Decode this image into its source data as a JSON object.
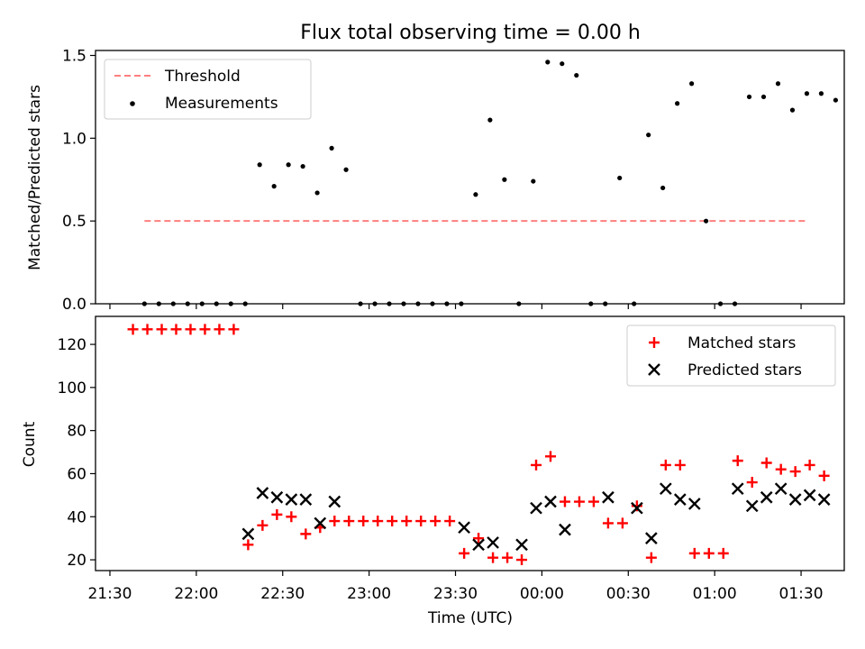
{
  "chart_data": [
    {
      "type": "scatter",
      "title": "Flux total observing time = 0.00 h",
      "xlabel": "",
      "ylabel": "Matched/Predicted stars",
      "ylim": [
        0,
        1.53
      ],
      "yticks": [
        0,
        0.5,
        1,
        1.5
      ],
      "ytick_labels": [
        "0.0",
        "0.5",
        "1.0",
        "1.5"
      ],
      "legend_position": "upper-left",
      "threshold": {
        "name": "Threshold",
        "value": 0.5,
        "x_start": "21:42",
        "x_end": "01:32",
        "color": "#ff7f7f"
      },
      "series": [
        {
          "name": "Measurements",
          "color": "#000000",
          "marker": "dot",
          "points": [
            [
              "21:42",
              0
            ],
            [
              "21:47",
              0
            ],
            [
              "21:52",
              0
            ],
            [
              "21:57",
              0
            ],
            [
              "22:02",
              0
            ],
            [
              "22:07",
              0
            ],
            [
              "22:12",
              0
            ],
            [
              "22:17",
              0
            ],
            [
              "22:22",
              0.84
            ],
            [
              "22:27",
              0.71
            ],
            [
              "22:32",
              0.84
            ],
            [
              "22:37",
              0.83
            ],
            [
              "22:42",
              0.67
            ],
            [
              "22:47",
              0.94
            ],
            [
              "22:52",
              0.81
            ],
            [
              "22:57",
              0
            ],
            [
              "23:02",
              0
            ],
            [
              "23:07",
              0
            ],
            [
              "23:12",
              0
            ],
            [
              "23:17",
              0
            ],
            [
              "23:22",
              0
            ],
            [
              "23:27",
              0
            ],
            [
              "23:32",
              0
            ],
            [
              "23:37",
              0.66
            ],
            [
              "23:42",
              1.11
            ],
            [
              "23:47",
              0.75
            ],
            [
              "23:52",
              0
            ],
            [
              "23:57",
              0.74
            ],
            [
              "00:02",
              1.46
            ],
            [
              "00:07",
              1.45
            ],
            [
              "00:12",
              1.38
            ],
            [
              "00:17",
              0
            ],
            [
              "00:22",
              0
            ],
            [
              "00:27",
              0.76
            ],
            [
              "00:32",
              0
            ],
            [
              "00:37",
              1.02
            ],
            [
              "00:42",
              0.7
            ],
            [
              "00:47",
              1.21
            ],
            [
              "00:52",
              1.33
            ],
            [
              "00:57",
              0.5
            ],
            [
              "01:02",
              0
            ],
            [
              "01:07",
              0
            ],
            [
              "01:12",
              1.25
            ],
            [
              "01:17",
              1.25
            ],
            [
              "01:22",
              1.33
            ],
            [
              "01:27",
              1.17
            ],
            [
              "01:32",
              1.27
            ],
            [
              "01:37",
              1.27
            ],
            [
              "01:42",
              1.23
            ]
          ]
        }
      ]
    },
    {
      "type": "scatter",
      "title": "",
      "xlabel": "Time (UTC)",
      "ylabel": "Count",
      "ylim": [
        15,
        133
      ],
      "yticks": [
        20,
        40,
        60,
        80,
        100,
        120
      ],
      "xlim": [
        "21:25",
        "01:45"
      ],
      "xticks": [
        "21:30",
        "22:00",
        "22:30",
        "23:00",
        "23:30",
        "00:00",
        "00:30",
        "01:00",
        "01:30"
      ],
      "legend_position": "upper-right",
      "series": [
        {
          "name": "Matched stars",
          "color": "#ff0000",
          "marker": "plus",
          "points": [
            [
              "21:38",
              127
            ],
            [
              "21:43",
              127
            ],
            [
              "21:48",
              127
            ],
            [
              "21:53",
              127
            ],
            [
              "21:58",
              127
            ],
            [
              "22:03",
              127
            ],
            [
              "22:08",
              127
            ],
            [
              "22:13",
              127
            ],
            [
              "22:18",
              27
            ],
            [
              "22:23",
              36
            ],
            [
              "22:28",
              41
            ],
            [
              "22:33",
              40
            ],
            [
              "22:38",
              32
            ],
            [
              "22:43",
              35
            ],
            [
              "22:48",
              38
            ],
            [
              "22:53",
              38
            ],
            [
              "22:58",
              38
            ],
            [
              "23:03",
              38
            ],
            [
              "23:08",
              38
            ],
            [
              "23:13",
              38
            ],
            [
              "23:18",
              38
            ],
            [
              "23:23",
              38
            ],
            [
              "23:28",
              38
            ],
            [
              "23:33",
              23
            ],
            [
              "23:38",
              30
            ],
            [
              "23:43",
              21
            ],
            [
              "23:48",
              21
            ],
            [
              "23:53",
              20
            ],
            [
              "23:58",
              64
            ],
            [
              "00:03",
              68
            ],
            [
              "00:08",
              47
            ],
            [
              "00:13",
              47
            ],
            [
              "00:18",
              47
            ],
            [
              "00:23",
              37
            ],
            [
              "00:28",
              37
            ],
            [
              "00:33",
              45
            ],
            [
              "00:38",
              21
            ],
            [
              "00:43",
              64
            ],
            [
              "00:48",
              64
            ],
            [
              "00:53",
              23
            ],
            [
              "00:58",
              23
            ],
            [
              "01:03",
              23
            ],
            [
              "01:08",
              66
            ],
            [
              "01:13",
              56
            ],
            [
              "01:18",
              65
            ],
            [
              "01:23",
              62
            ],
            [
              "01:28",
              61
            ],
            [
              "01:33",
              64
            ],
            [
              "01:38",
              59
            ]
          ]
        },
        {
          "name": "Predicted stars",
          "color": "#000000",
          "marker": "x",
          "points": [
            [
              "22:18",
              32
            ],
            [
              "22:23",
              51
            ],
            [
              "22:28",
              49
            ],
            [
              "22:33",
              48
            ],
            [
              "22:38",
              48
            ],
            [
              "22:43",
              37
            ],
            [
              "22:48",
              47
            ],
            [
              "23:33",
              35
            ],
            [
              "23:38",
              27
            ],
            [
              "23:43",
              28
            ],
            [
              "23:53",
              27
            ],
            [
              "23:58",
              44
            ],
            [
              "00:03",
              47
            ],
            [
              "00:08",
              34
            ],
            [
              "00:23",
              49
            ],
            [
              "00:33",
              44
            ],
            [
              "00:38",
              30
            ],
            [
              "00:43",
              53
            ],
            [
              "00:48",
              48
            ],
            [
              "00:53",
              46
            ],
            [
              "01:08",
              53
            ],
            [
              "01:13",
              45
            ],
            [
              "01:18",
              49
            ],
            [
              "01:23",
              53
            ],
            [
              "01:28",
              48
            ],
            [
              "01:33",
              50
            ],
            [
              "01:38",
              48
            ]
          ]
        }
      ]
    }
  ]
}
